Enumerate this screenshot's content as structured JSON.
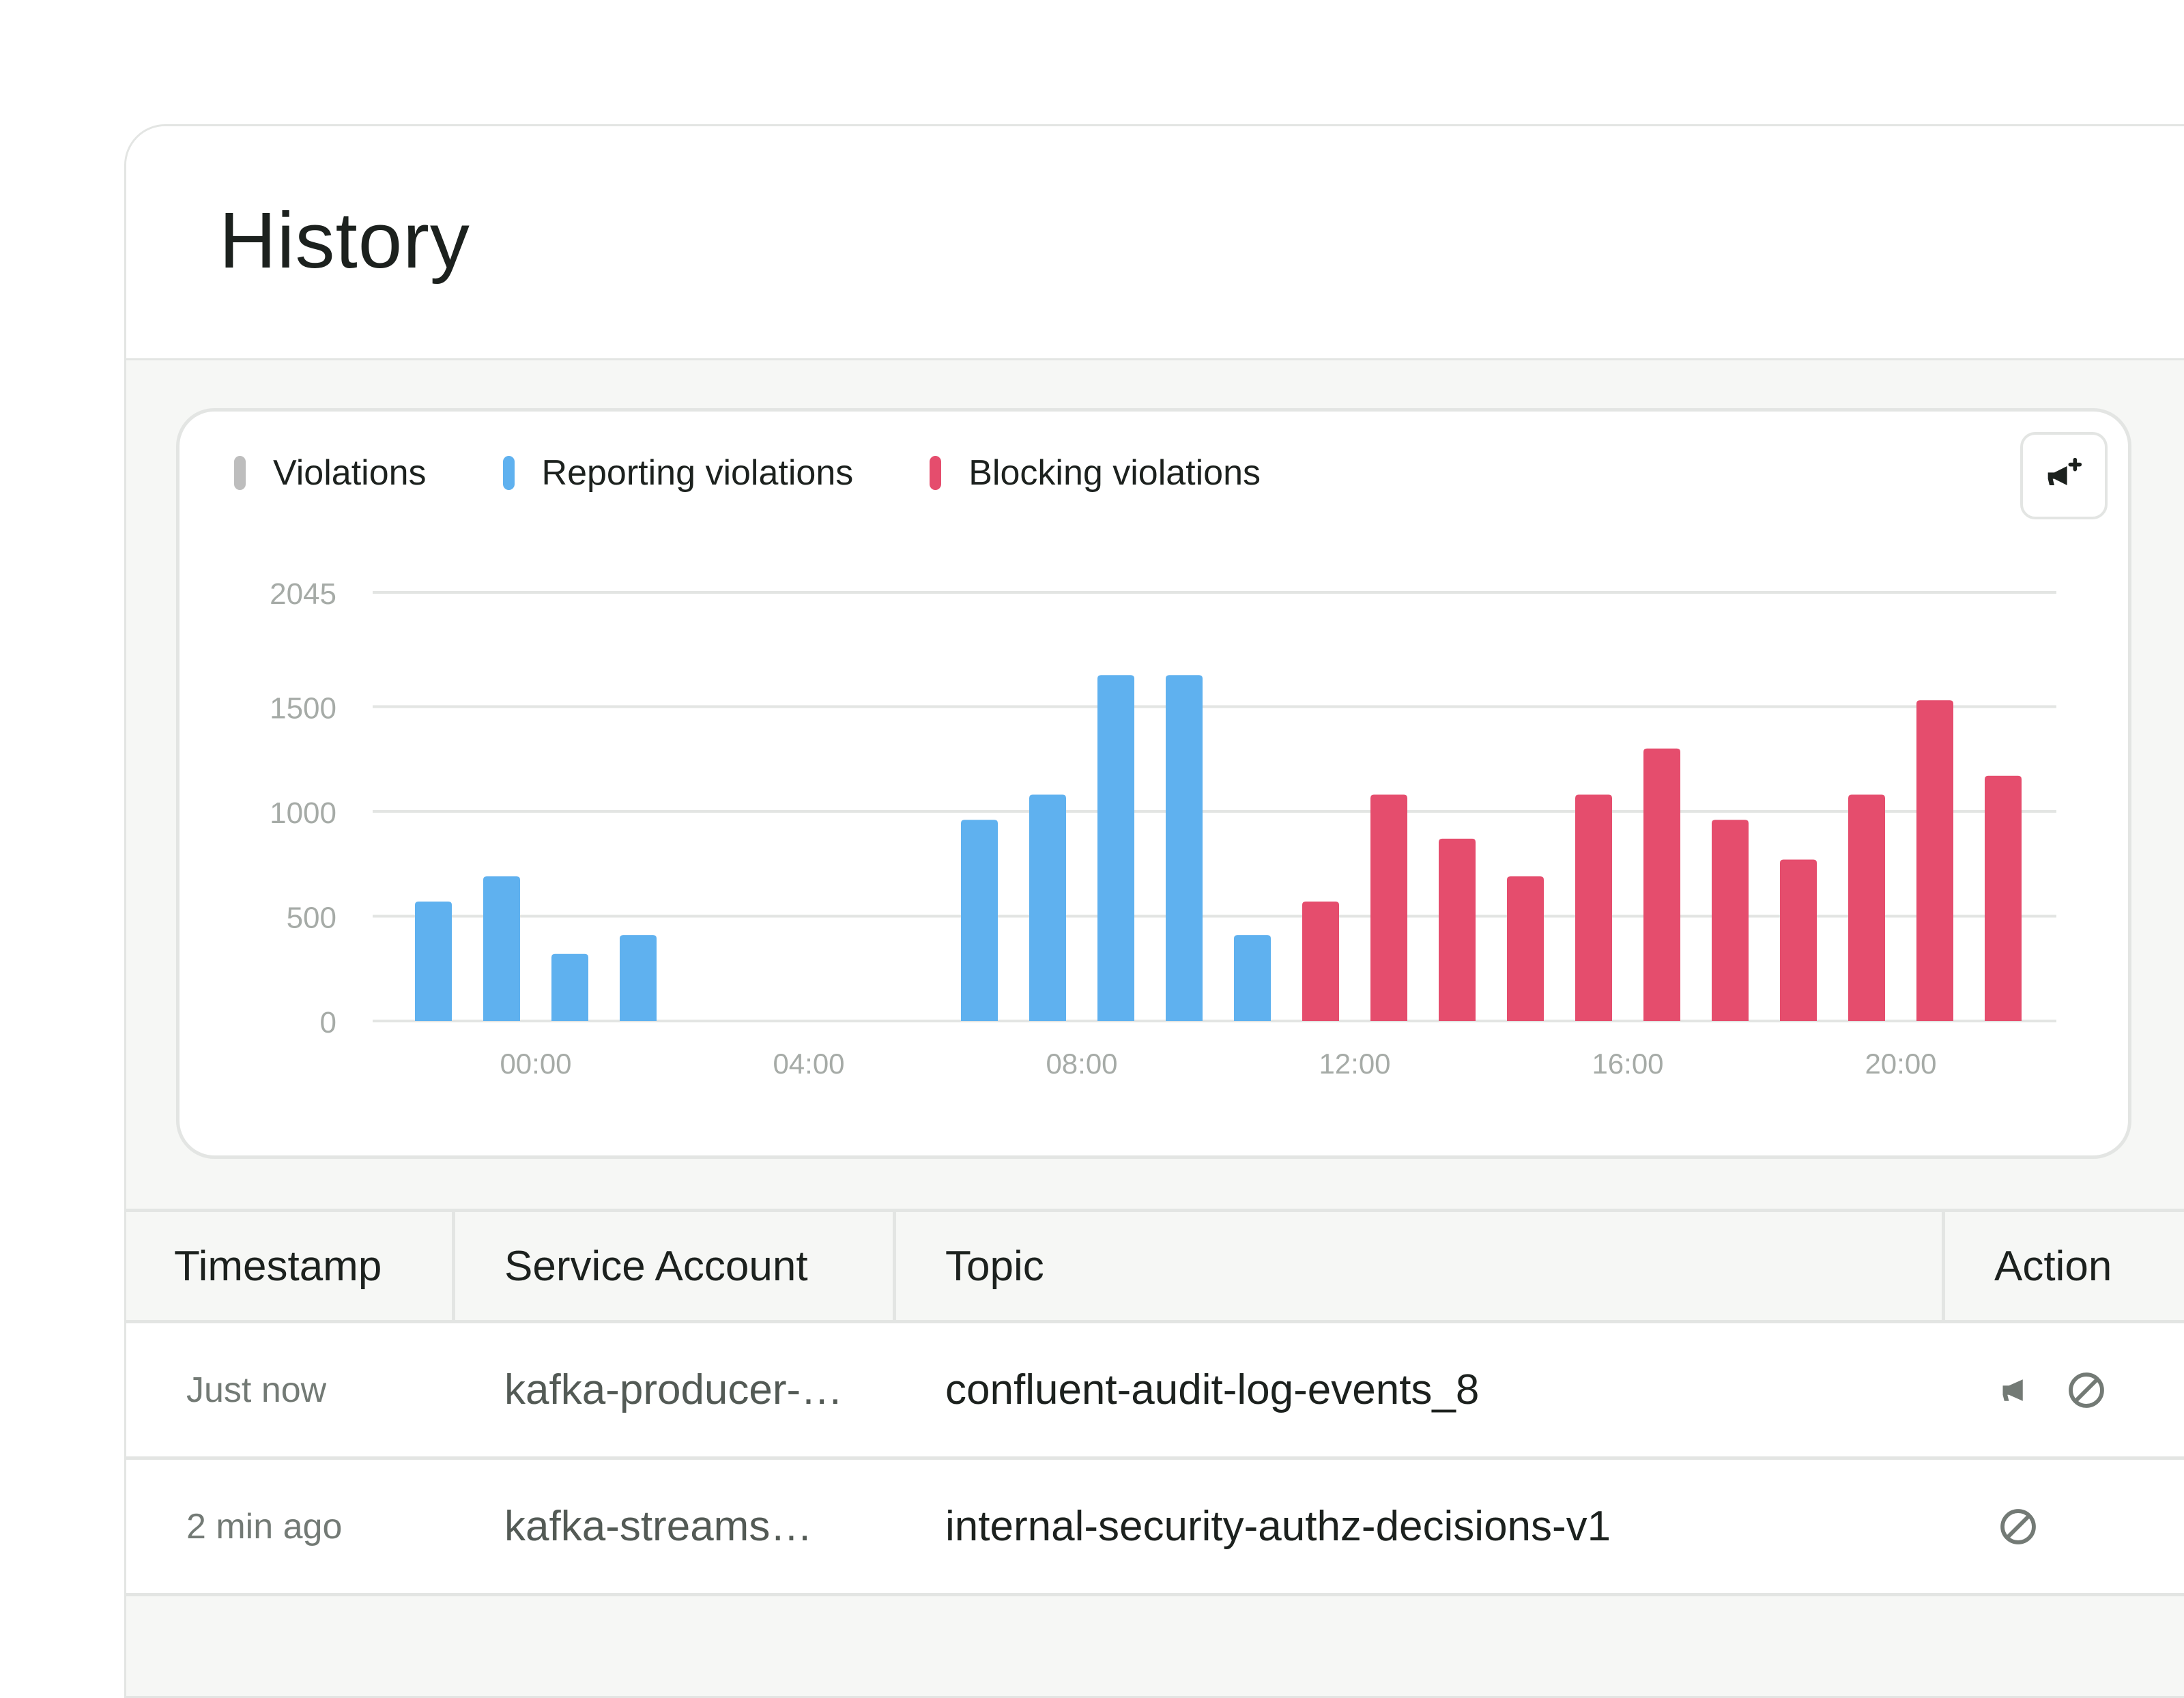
{
  "page": {
    "title": "History"
  },
  "legend": [
    {
      "label": "Violations",
      "color": "#bdbdbd"
    },
    {
      "label": "Reporting violations",
      "color": "#5fb1ef"
    },
    {
      "label": "Blocking violations",
      "color": "#e54d6d"
    }
  ],
  "export_button": {
    "icon": "megaphone-plus-icon"
  },
  "chart_data": {
    "type": "bar",
    "series": [
      {
        "name": "Reporting violations",
        "color": "#5fb1ef"
      },
      {
        "name": "Blocking violations",
        "color": "#e54d6d"
      }
    ],
    "bars": [
      {
        "x": 0,
        "value": 570,
        "series": 0
      },
      {
        "x": 1,
        "value": 690,
        "series": 0
      },
      {
        "x": 2,
        "value": 320,
        "series": 0
      },
      {
        "x": 3,
        "value": 410,
        "series": 0
      },
      {
        "x": 8,
        "value": 960,
        "series": 0
      },
      {
        "x": 9,
        "value": 1080,
        "series": 0
      },
      {
        "x": 10,
        "value": 1650,
        "series": 0
      },
      {
        "x": 11,
        "value": 1650,
        "series": 0
      },
      {
        "x": 12,
        "value": 410,
        "series": 0
      },
      {
        "x": 13,
        "value": 570,
        "series": 1
      },
      {
        "x": 14,
        "value": 1080,
        "series": 1
      },
      {
        "x": 15,
        "value": 870,
        "series": 1
      },
      {
        "x": 16,
        "value": 690,
        "series": 1
      },
      {
        "x": 17,
        "value": 1080,
        "series": 1
      },
      {
        "x": 18,
        "value": 1300,
        "series": 1
      },
      {
        "x": 19,
        "value": 960,
        "series": 1
      },
      {
        "x": 20,
        "value": 770,
        "series": 1
      },
      {
        "x": 21,
        "value": 1080,
        "series": 1
      },
      {
        "x": 22,
        "value": 1530,
        "series": 1
      },
      {
        "x": 23,
        "value": 1170,
        "series": 1
      }
    ],
    "slot_count": 24,
    "y_ticks": [
      "2045",
      "1500",
      "1000",
      "500",
      "0"
    ],
    "y_tick_values": [
      2045,
      1500,
      1000,
      500,
      0
    ],
    "x_ticks": [
      {
        "label": "00:00",
        "slot": 1.5
      },
      {
        "label": "04:00",
        "slot": 5.5
      },
      {
        "label": "08:00",
        "slot": 9.5
      },
      {
        "label": "12:00",
        "slot": 13.5
      },
      {
        "label": "16:00",
        "slot": 17.5
      },
      {
        "label": "20:00",
        "slot": 21.5
      }
    ],
    "ylim": [
      0,
      2045
    ],
    "grid": true,
    "xlabel": "",
    "ylabel": ""
  },
  "table": {
    "headers": {
      "timestamp": "Timestamp",
      "service_account": "Service Account",
      "topic": "Topic",
      "action": "Action"
    },
    "rows": [
      {
        "timestamp": "Just now",
        "service_account": "kafka-producer-…",
        "topic": "confluent-audit-log-events_8",
        "actions": [
          "megaphone-icon",
          "block-icon"
        ]
      },
      {
        "timestamp": "2 min ago",
        "service_account": "kafka-streams…",
        "topic": "internal-security-authz-decisions-v1",
        "actions": [
          "block-icon"
        ]
      }
    ]
  }
}
